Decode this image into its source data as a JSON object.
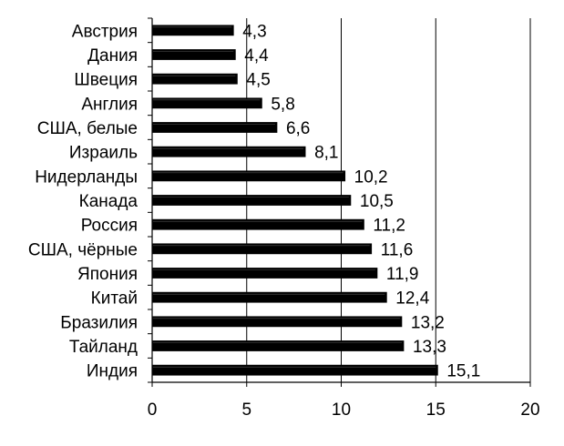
{
  "chart_data": {
    "type": "bar",
    "orientation": "horizontal",
    "title": "",
    "xlabel": "",
    "ylabel": "",
    "categories": [
      "Австрия",
      "Дания",
      "Швеция",
      "Англия",
      "США, белые",
      "Израиль",
      "Нидерланды",
      "Канада",
      "Россия",
      "США, чёрные",
      "Япония",
      "Китай",
      "Бразилия",
      "Тайланд",
      "Индия"
    ],
    "values": [
      4.3,
      4.4,
      4.5,
      5.8,
      6.6,
      8.1,
      10.2,
      10.5,
      11.2,
      11.6,
      11.9,
      12.4,
      13.2,
      13.3,
      15.1
    ],
    "value_labels": [
      "4,3",
      "4,4",
      "4,5",
      "5,8",
      "6,6",
      "8,1",
      "10,2",
      "10,5",
      "11,2",
      "11,6",
      "11,9",
      "12,4",
      "13,2",
      "13,3",
      "15,1"
    ],
    "xlim": [
      0,
      20
    ],
    "x_ticks": [
      "0",
      "5",
      "10",
      "15",
      "20"
    ],
    "x_tick_values": [
      0,
      5,
      10,
      15,
      20
    ],
    "grid": "vertical",
    "legend": "none",
    "bar_color": "#000000"
  }
}
